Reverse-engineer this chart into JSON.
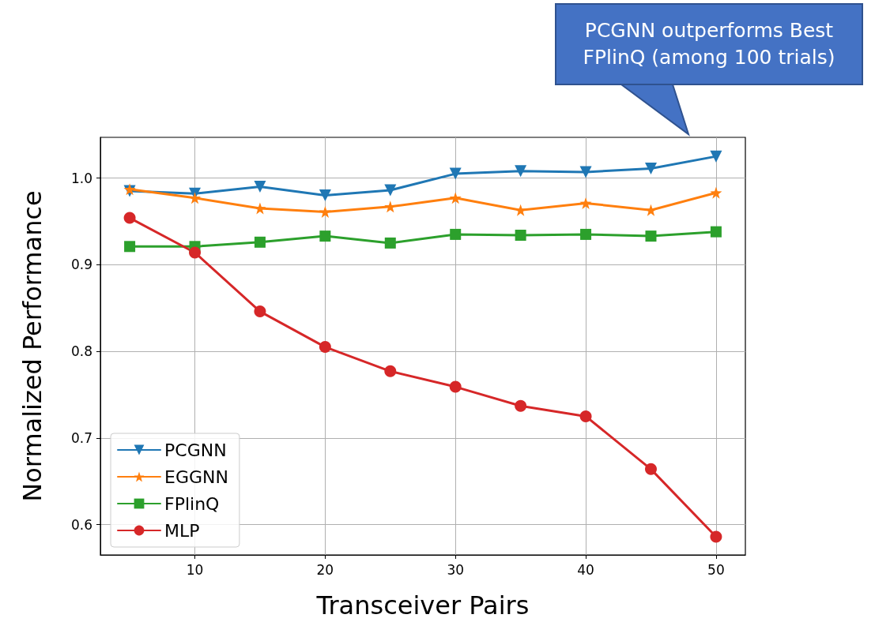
{
  "chart_data": {
    "type": "line",
    "xlabel": "Transceiver Pairs",
    "ylabel": "Normalized Performance",
    "x": [
      5,
      10,
      15,
      20,
      25,
      30,
      35,
      40,
      45,
      50
    ],
    "series": [
      {
        "name": "PCGNN",
        "color": "#1f77b4",
        "marker": "triangle",
        "values": [
          0.985,
          0.982,
          0.99,
          0.98,
          0.986,
          1.005,
          1.008,
          1.007,
          1.011,
          1.025
        ]
      },
      {
        "name": "EGGNN",
        "color": "#ff7f0e",
        "marker": "star",
        "values": [
          0.987,
          0.977,
          0.965,
          0.961,
          0.967,
          0.977,
          0.963,
          0.971,
          0.963,
          0.983
        ]
      },
      {
        "name": "FPlinQ",
        "color": "#2ca02c",
        "marker": "square",
        "values": [
          0.921,
          0.921,
          0.926,
          0.933,
          0.925,
          0.935,
          0.934,
          0.935,
          0.933,
          0.938
        ]
      },
      {
        "name": "MLP",
        "color": "#d62728",
        "marker": "circle",
        "values": [
          0.954,
          0.914,
          0.846,
          0.805,
          0.777,
          0.759,
          0.737,
          0.725,
          0.664,
          0.586
        ]
      }
    ],
    "xlim": [
      2.75,
      52.25
    ],
    "xticks": [
      10,
      20,
      30,
      40,
      50
    ],
    "ylim": [
      0.565,
      1.047
    ],
    "yticks": [
      {
        "value": 0.6,
        "label": "0.6"
      },
      {
        "value": 0.7,
        "label": "0.7"
      },
      {
        "value": 0.8,
        "label": "0.8"
      },
      {
        "value": 0.9,
        "label": "0.9"
      },
      {
        "value": 1.0,
        "label": "1.0"
      }
    ],
    "grid": true,
    "legend": "bottom left",
    "line_style": "solid",
    "annotations": [
      "PCGNN outperforms Best FPlinQ (among 100 trials)"
    ]
  }
}
